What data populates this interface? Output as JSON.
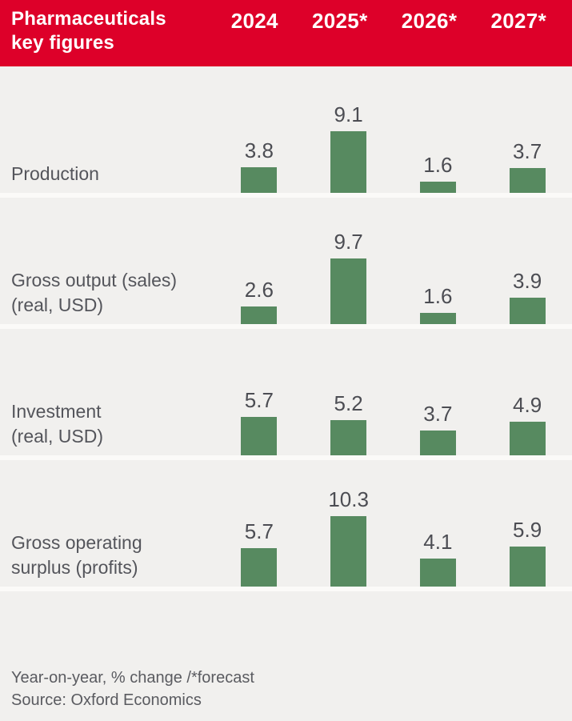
{
  "header": {
    "title_line1": "Pharmaceuticals",
    "title_line2": "key figures",
    "columns": [
      "2024",
      "2025*",
      "2026*",
      "2027*"
    ]
  },
  "chart_data": {
    "type": "bar",
    "title": "Pharmaceuticals key figures",
    "categories": [
      "2024",
      "2025*",
      "2026*",
      "2027*"
    ],
    "series": [
      {
        "name": "Production",
        "label_lines": [
          "Production"
        ],
        "values": [
          3.8,
          9.1,
          1.6,
          3.7
        ]
      },
      {
        "name": "Gross output (sales) (real, USD)",
        "label_lines": [
          "Gross output (sales)",
          "(real, USD)"
        ],
        "values": [
          2.6,
          9.7,
          1.6,
          3.9
        ]
      },
      {
        "name": "Investment (real, USD)",
        "label_lines": [
          "Investment",
          "(real, USD)"
        ],
        "values": [
          5.7,
          5.2,
          3.7,
          4.9
        ]
      },
      {
        "name": "Gross operating surplus (profits)",
        "label_lines": [
          "Gross operating",
          "surplus (profits)"
        ],
        "values": [
          5.7,
          10.3,
          4.1,
          5.9
        ]
      }
    ],
    "unit": "Year-on-year, % change",
    "value_labels_shown": true,
    "axes_shown": false,
    "grid": false,
    "legend": "none",
    "ylim": [
      0,
      10.3
    ],
    "bar_color": "#578A60"
  },
  "footer": {
    "note": "Year-on-year, % change /*forecast",
    "source": "Source: Oxford Economics"
  },
  "colors": {
    "header_bg": "#DD0029",
    "header_text": "#FFFFFF",
    "page_bg": "#F1F0EE",
    "row_separator": "#FBFAF8",
    "bar_fill": "#578A60",
    "label_text": "#54555B",
    "value_text": "#4C4D53",
    "footer_text": "#5A5B60"
  }
}
